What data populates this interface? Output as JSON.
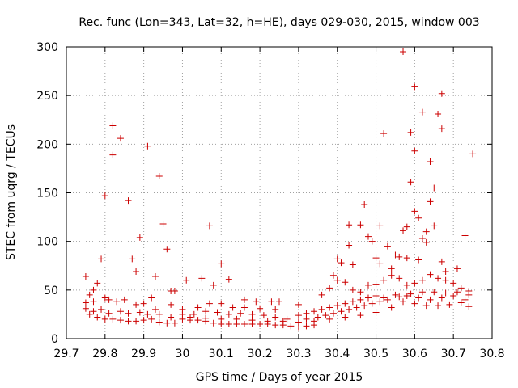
{
  "chart_data": {
    "type": "scatter",
    "title": "Rec. func (Lon=343, Lat=32, h=HE), days 029-030, 2015, window 003",
    "xlabel": "GPS time / Days of year 2015",
    "ylabel": "STEC from uqrg / TECUs",
    "xlim": [
      29.7,
      30.8
    ],
    "ylim": [
      0,
      300
    ],
    "xticks": [
      "29.7",
      "29.8",
      "29.9",
      "30",
      "30.1",
      "30.2",
      "30.3",
      "30.4",
      "30.5",
      "30.6",
      "30.7",
      "30.8"
    ],
    "yticks": [
      "0",
      "50",
      "100",
      "150",
      "200",
      "250",
      "300"
    ],
    "grid": true,
    "legend": "none",
    "marker": "plus",
    "color": "#cc0000",
    "series": [
      {
        "points": [
          [
            29.75,
            64
          ],
          [
            29.76,
            45
          ],
          [
            29.77,
            50
          ],
          [
            29.78,
            57
          ],
          [
            29.79,
            82
          ],
          [
            29.8,
            147
          ],
          [
            29.81,
            40
          ],
          [
            29.82,
            219
          ],
          [
            29.82,
            189
          ],
          [
            29.84,
            206
          ],
          [
            29.86,
            142
          ],
          [
            29.87,
            82
          ],
          [
            29.88,
            69
          ],
          [
            29.89,
            104
          ],
          [
            29.91,
            198
          ],
          [
            29.92,
            42
          ],
          [
            29.93,
            64
          ],
          [
            29.94,
            167
          ],
          [
            29.95,
            118
          ],
          [
            29.96,
            92
          ],
          [
            29.97,
            49
          ],
          [
            29.98,
            49
          ],
          [
            30.01,
            60
          ],
          [
            30.05,
            62
          ],
          [
            30.07,
            116
          ],
          [
            30.08,
            55
          ],
          [
            30.1,
            77
          ],
          [
            30.12,
            61
          ],
          [
            30.16,
            40
          ],
          [
            30.19,
            38
          ],
          [
            30.23,
            38
          ],
          [
            30.25,
            38
          ],
          [
            30.3,
            35
          ],
          [
            29.75,
            37
          ],
          [
            29.77,
            38
          ],
          [
            29.8,
            42
          ],
          [
            29.83,
            38
          ],
          [
            29.85,
            40
          ],
          [
            29.88,
            35
          ],
          [
            29.9,
            36
          ],
          [
            29.93,
            30
          ],
          [
            29.97,
            35
          ],
          [
            30.0,
            30
          ],
          [
            30.04,
            32
          ],
          [
            30.07,
            36
          ],
          [
            30.1,
            36
          ],
          [
            30.13,
            32
          ],
          [
            30.16,
            32
          ],
          [
            30.2,
            31
          ],
          [
            30.24,
            30
          ],
          [
            29.75,
            31
          ],
          [
            29.77,
            28
          ],
          [
            29.79,
            30
          ],
          [
            29.81,
            26
          ],
          [
            29.84,
            28
          ],
          [
            29.86,
            26
          ],
          [
            29.89,
            27
          ],
          [
            29.91,
            25
          ],
          [
            29.94,
            25
          ],
          [
            29.97,
            22
          ],
          [
            30.0,
            25
          ],
          [
            30.03,
            25
          ],
          [
            30.06,
            28
          ],
          [
            30.09,
            27
          ],
          [
            30.12,
            25
          ],
          [
            30.15,
            26
          ],
          [
            30.18,
            25
          ],
          [
            30.21,
            24
          ],
          [
            30.24,
            22
          ],
          [
            30.27,
            20
          ],
          [
            29.76,
            25
          ],
          [
            29.78,
            22
          ],
          [
            29.8,
            20
          ],
          [
            29.82,
            20
          ],
          [
            29.84,
            19
          ],
          [
            29.86,
            18
          ],
          [
            29.88,
            18
          ],
          [
            29.9,
            19
          ],
          [
            29.92,
            20
          ],
          [
            29.94,
            17
          ],
          [
            29.96,
            16
          ],
          [
            29.98,
            16
          ],
          [
            30.0,
            20
          ],
          [
            30.02,
            19
          ],
          [
            30.04,
            19
          ],
          [
            30.06,
            18
          ],
          [
            30.08,
            16
          ],
          [
            30.1,
            15
          ],
          [
            30.12,
            15
          ],
          [
            30.14,
            15
          ],
          [
            30.16,
            15
          ],
          [
            30.18,
            15
          ],
          [
            30.2,
            15
          ],
          [
            30.22,
            15
          ],
          [
            30.24,
            14
          ],
          [
            30.26,
            14
          ],
          [
            30.28,
            13
          ],
          [
            30.3,
            12
          ],
          [
            30.32,
            13
          ],
          [
            30.34,
            14
          ],
          [
            30.02,
            22
          ],
          [
            30.06,
            21
          ],
          [
            30.1,
            20
          ],
          [
            30.14,
            20
          ],
          [
            30.18,
            19
          ],
          [
            30.22,
            18
          ],
          [
            30.26,
            18
          ],
          [
            30.3,
            17
          ],
          [
            30.34,
            18
          ],
          [
            30.38,
            20
          ],
          [
            30.42,
            22
          ],
          [
            30.46,
            24
          ],
          [
            30.5,
            27
          ],
          [
            30.54,
            32
          ],
          [
            30.57,
            38
          ],
          [
            30.6,
            36
          ],
          [
            30.63,
            34
          ],
          [
            30.66,
            34
          ],
          [
            30.69,
            35
          ],
          [
            30.72,
            37
          ],
          [
            30.74,
            33
          ],
          [
            30.3,
            24
          ],
          [
            30.32,
            26
          ],
          [
            30.34,
            28
          ],
          [
            30.36,
            30
          ],
          [
            30.38,
            32
          ],
          [
            30.4,
            34
          ],
          [
            30.42,
            36
          ],
          [
            30.44,
            38
          ],
          [
            30.46,
            40
          ],
          [
            30.48,
            42
          ],
          [
            30.5,
            44
          ],
          [
            30.52,
            42
          ],
          [
            30.55,
            45
          ],
          [
            30.58,
            44
          ],
          [
            30.61,
            42
          ],
          [
            30.64,
            40
          ],
          [
            30.67,
            42
          ],
          [
            30.7,
            44
          ],
          [
            30.73,
            40
          ],
          [
            30.32,
            20
          ],
          [
            30.35,
            22
          ],
          [
            30.37,
            24
          ],
          [
            30.39,
            26
          ],
          [
            30.41,
            28
          ],
          [
            30.43,
            30
          ],
          [
            30.45,
            32
          ],
          [
            30.47,
            34
          ],
          [
            30.49,
            36
          ],
          [
            30.51,
            38
          ],
          [
            30.53,
            40
          ],
          [
            30.56,
            43
          ],
          [
            30.59,
            46
          ],
          [
            30.62,
            48
          ],
          [
            30.65,
            48
          ],
          [
            30.68,
            47
          ],
          [
            30.71,
            48
          ],
          [
            30.74,
            49
          ],
          [
            30.36,
            45
          ],
          [
            30.38,
            52
          ],
          [
            30.4,
            60
          ],
          [
            30.42,
            58
          ],
          [
            30.44,
            50
          ],
          [
            30.46,
            48
          ],
          [
            30.48,
            55
          ],
          [
            30.5,
            56
          ],
          [
            30.52,
            60
          ],
          [
            30.54,
            65
          ],
          [
            30.56,
            62
          ],
          [
            30.58,
            55
          ],
          [
            30.6,
            57
          ],
          [
            30.62,
            60
          ],
          [
            30.64,
            66
          ],
          [
            30.66,
            62
          ],
          [
            30.68,
            60
          ],
          [
            30.7,
            57
          ],
          [
            30.72,
            52
          ],
          [
            30.74,
            45
          ],
          [
            30.39,
            65
          ],
          [
            30.4,
            82
          ],
          [
            30.41,
            78
          ],
          [
            30.43,
            96
          ],
          [
            30.43,
            117
          ],
          [
            30.44,
            76
          ],
          [
            30.46,
            117
          ],
          [
            30.47,
            138
          ],
          [
            30.48,
            105
          ],
          [
            30.49,
            100
          ],
          [
            30.5,
            83
          ],
          [
            30.51,
            77
          ],
          [
            30.51,
            116
          ],
          [
            30.52,
            211
          ],
          [
            30.53,
            95
          ],
          [
            30.54,
            72
          ],
          [
            30.55,
            86
          ],
          [
            30.56,
            84
          ],
          [
            30.57,
            295
          ],
          [
            30.57,
            111
          ],
          [
            30.58,
            115
          ],
          [
            30.58,
            83
          ],
          [
            30.59,
            212
          ],
          [
            30.59,
            161
          ],
          [
            30.6,
            259
          ],
          [
            30.6,
            193
          ],
          [
            30.6,
            131
          ],
          [
            30.61,
            124
          ],
          [
            30.61,
            81
          ],
          [
            30.62,
            233
          ],
          [
            30.62,
            103
          ],
          [
            30.63,
            110
          ],
          [
            30.63,
            99
          ],
          [
            30.64,
            182
          ],
          [
            30.64,
            141
          ],
          [
            30.65,
            155
          ],
          [
            30.65,
            116
          ],
          [
            30.66,
            231
          ],
          [
            30.67,
            252
          ],
          [
            30.67,
            216
          ],
          [
            30.67,
            79
          ],
          [
            30.68,
            69
          ],
          [
            30.71,
            72
          ],
          [
            30.73,
            106
          ],
          [
            30.75,
            190
          ]
        ]
      }
    ]
  }
}
